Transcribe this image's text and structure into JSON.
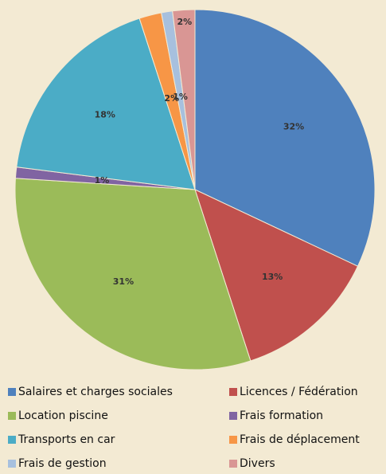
{
  "chart_data": {
    "type": "pie",
    "categories": [
      "Salaires et charges sociales",
      "Licences / Fédération",
      "Location piscine",
      "Frais formation",
      "Transports en car",
      "Frais de déplacement",
      "Frais de gestion",
      "Divers"
    ],
    "values": [
      32,
      13,
      31,
      1,
      18,
      2,
      1,
      2
    ],
    "value_labels": [
      "32%",
      "13%",
      "31%",
      "1%",
      "18%",
      "2%",
      "1%",
      "2%"
    ],
    "colors": [
      "#4f81bd",
      "#c0504d",
      "#9bbb59",
      "#8064a2",
      "#4bacc6",
      "#f79646",
      "#a7c0de",
      "#d99694"
    ],
    "legend": "bottom"
  }
}
